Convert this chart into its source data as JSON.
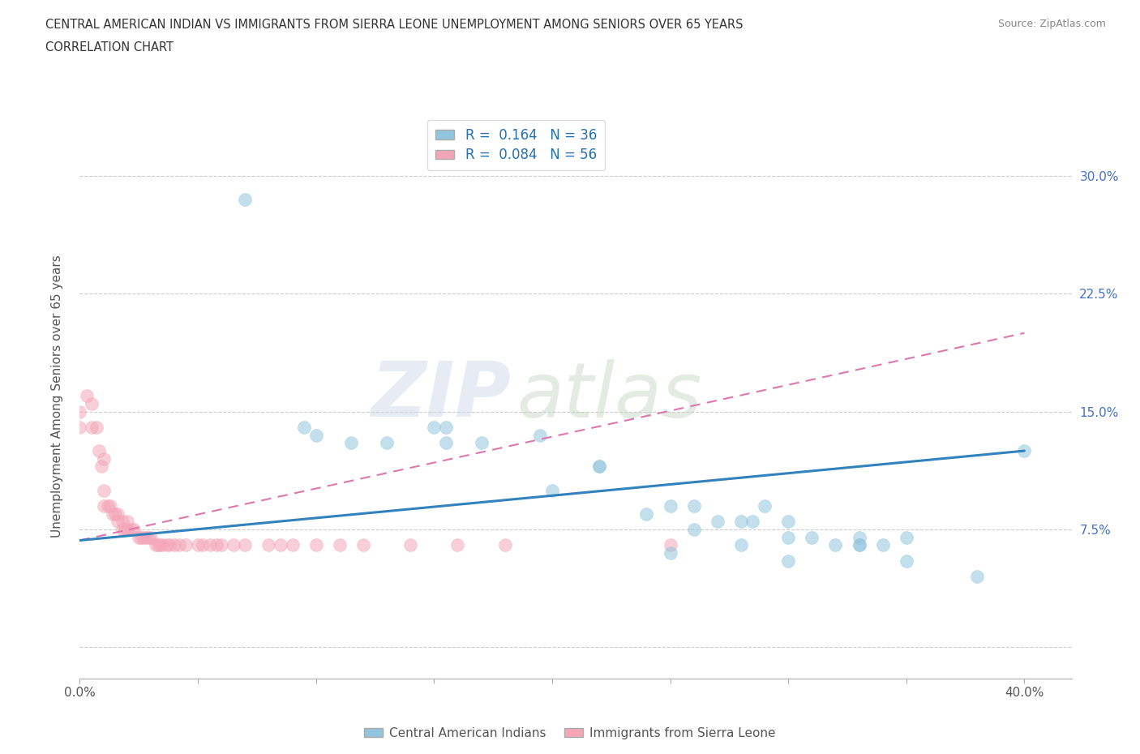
{
  "title_line1": "CENTRAL AMERICAN INDIAN VS IMMIGRANTS FROM SIERRA LEONE UNEMPLOYMENT AMONG SENIORS OVER 65 YEARS",
  "title_line2": "CORRELATION CHART",
  "source_text": "Source: ZipAtlas.com",
  "ylabel": "Unemployment Among Seniors over 65 years",
  "xlim": [
    0.0,
    0.42
  ],
  "ylim": [
    -0.02,
    0.34
  ],
  "xticks": [
    0.0,
    0.05,
    0.1,
    0.15,
    0.2,
    0.25,
    0.3,
    0.35,
    0.4
  ],
  "xticklabels": [
    "0.0%",
    "",
    "",
    "",
    "",
    "",
    "",
    "",
    "40.0%"
  ],
  "ytick_positions": [
    0.0,
    0.075,
    0.15,
    0.225,
    0.3
  ],
  "yticklabels": [
    "",
    "7.5%",
    "15.0%",
    "22.5%",
    "30.0%"
  ],
  "watermark_zip": "ZIP",
  "watermark_atlas": "atlas",
  "legend_r1": "R =  0.164",
  "legend_n1": "N = 36",
  "legend_r2": "R =  0.084",
  "legend_n2": "N = 56",
  "color_blue": "#92c5de",
  "color_pink": "#f4a6b8",
  "color_blue_line": "#3182bd",
  "color_pink_line": "#de77ae",
  "blue_scatter_x": [
    0.07,
    0.095,
    0.1,
    0.115,
    0.13,
    0.15,
    0.155,
    0.155,
    0.17,
    0.195,
    0.2,
    0.22,
    0.22,
    0.24,
    0.25,
    0.26,
    0.27,
    0.28,
    0.285,
    0.29,
    0.3,
    0.3,
    0.31,
    0.32,
    0.33,
    0.33,
    0.34,
    0.35,
    0.28,
    0.3,
    0.26,
    0.25,
    0.33,
    0.35,
    0.38,
    0.4
  ],
  "blue_scatter_y": [
    0.285,
    0.14,
    0.135,
    0.13,
    0.13,
    0.14,
    0.14,
    0.13,
    0.13,
    0.135,
    0.1,
    0.115,
    0.115,
    0.085,
    0.09,
    0.09,
    0.08,
    0.08,
    0.08,
    0.09,
    0.08,
    0.07,
    0.07,
    0.065,
    0.065,
    0.07,
    0.065,
    0.07,
    0.065,
    0.055,
    0.075,
    0.06,
    0.065,
    0.055,
    0.045,
    0.125
  ],
  "pink_scatter_x": [
    0.0,
    0.0,
    0.003,
    0.005,
    0.005,
    0.007,
    0.008,
    0.009,
    0.01,
    0.01,
    0.01,
    0.012,
    0.013,
    0.014,
    0.015,
    0.016,
    0.016,
    0.018,
    0.018,
    0.019,
    0.02,
    0.02,
    0.022,
    0.023,
    0.025,
    0.026,
    0.027,
    0.028,
    0.029,
    0.03,
    0.032,
    0.033,
    0.034,
    0.035,
    0.037,
    0.038,
    0.04,
    0.042,
    0.045,
    0.05,
    0.052,
    0.055,
    0.058,
    0.06,
    0.065,
    0.07,
    0.08,
    0.085,
    0.09,
    0.1,
    0.11,
    0.12,
    0.14,
    0.16,
    0.18,
    0.25
  ],
  "pink_scatter_y": [
    0.15,
    0.14,
    0.16,
    0.155,
    0.14,
    0.14,
    0.125,
    0.115,
    0.12,
    0.1,
    0.09,
    0.09,
    0.09,
    0.085,
    0.085,
    0.085,
    0.08,
    0.08,
    0.075,
    0.075,
    0.08,
    0.075,
    0.075,
    0.075,
    0.07,
    0.07,
    0.07,
    0.07,
    0.07,
    0.07,
    0.065,
    0.065,
    0.065,
    0.065,
    0.065,
    0.065,
    0.065,
    0.065,
    0.065,
    0.065,
    0.065,
    0.065,
    0.065,
    0.065,
    0.065,
    0.065,
    0.065,
    0.065,
    0.065,
    0.065,
    0.065,
    0.065,
    0.065,
    0.065,
    0.065,
    0.065
  ],
  "blue_line_x": [
    0.0,
    0.4
  ],
  "blue_line_y": [
    0.068,
    0.125
  ],
  "pink_line_x": [
    0.0,
    0.4
  ],
  "pink_line_y": [
    0.068,
    0.2
  ],
  "legend_label_blue": "Central American Indians",
  "legend_label_pink": "Immigrants from Sierra Leone"
}
